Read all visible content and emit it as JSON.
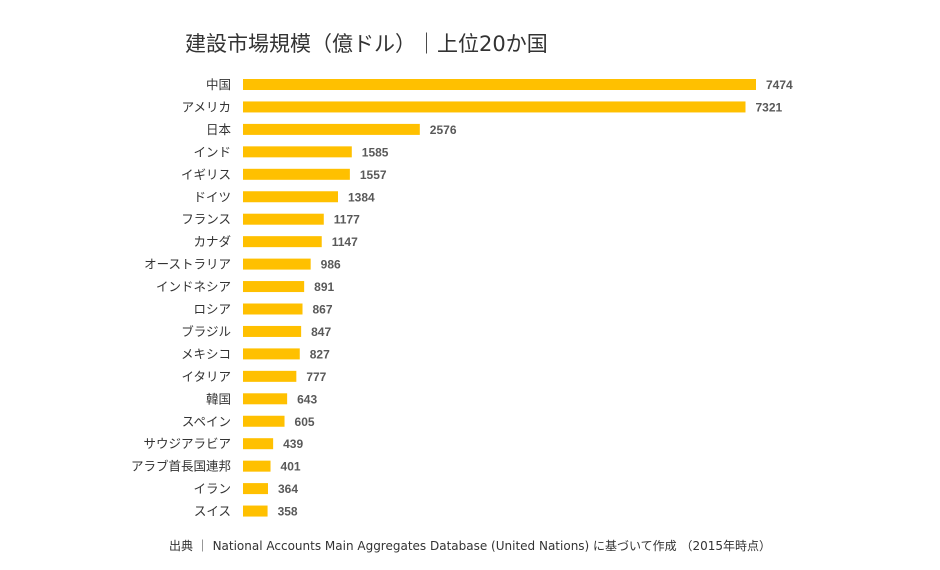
{
  "chart_data": {
    "type": "bar",
    "orientation": "horizontal",
    "title": "建設市場規模（億ドル）｜上位20か国",
    "categories": [
      "中国",
      "アメリカ",
      "日本",
      "インド",
      "イギリス",
      "ドイツ",
      "フランス",
      "カナダ",
      "オーストラリア",
      "インドネシア",
      "ロシア",
      "ブラジル",
      "メキシコ",
      "イタリア",
      "韓国",
      "スペイン",
      "サウジアラビア",
      "アラブ首長国連邦",
      "イラン",
      "スイス"
    ],
    "values": [
      7474,
      7321,
      2576,
      1585,
      1557,
      1384,
      1177,
      1147,
      986,
      891,
      867,
      847,
      827,
      777,
      643,
      605,
      439,
      401,
      364,
      358
    ],
    "xlim": [
      0,
      7474
    ],
    "grid": false,
    "legend": "none",
    "bar_color": "#FFC000",
    "source": "出典 ｜ National Accounts Main Aggregates Database (United Nations) に基づいて作成 （2015年時点）"
  }
}
